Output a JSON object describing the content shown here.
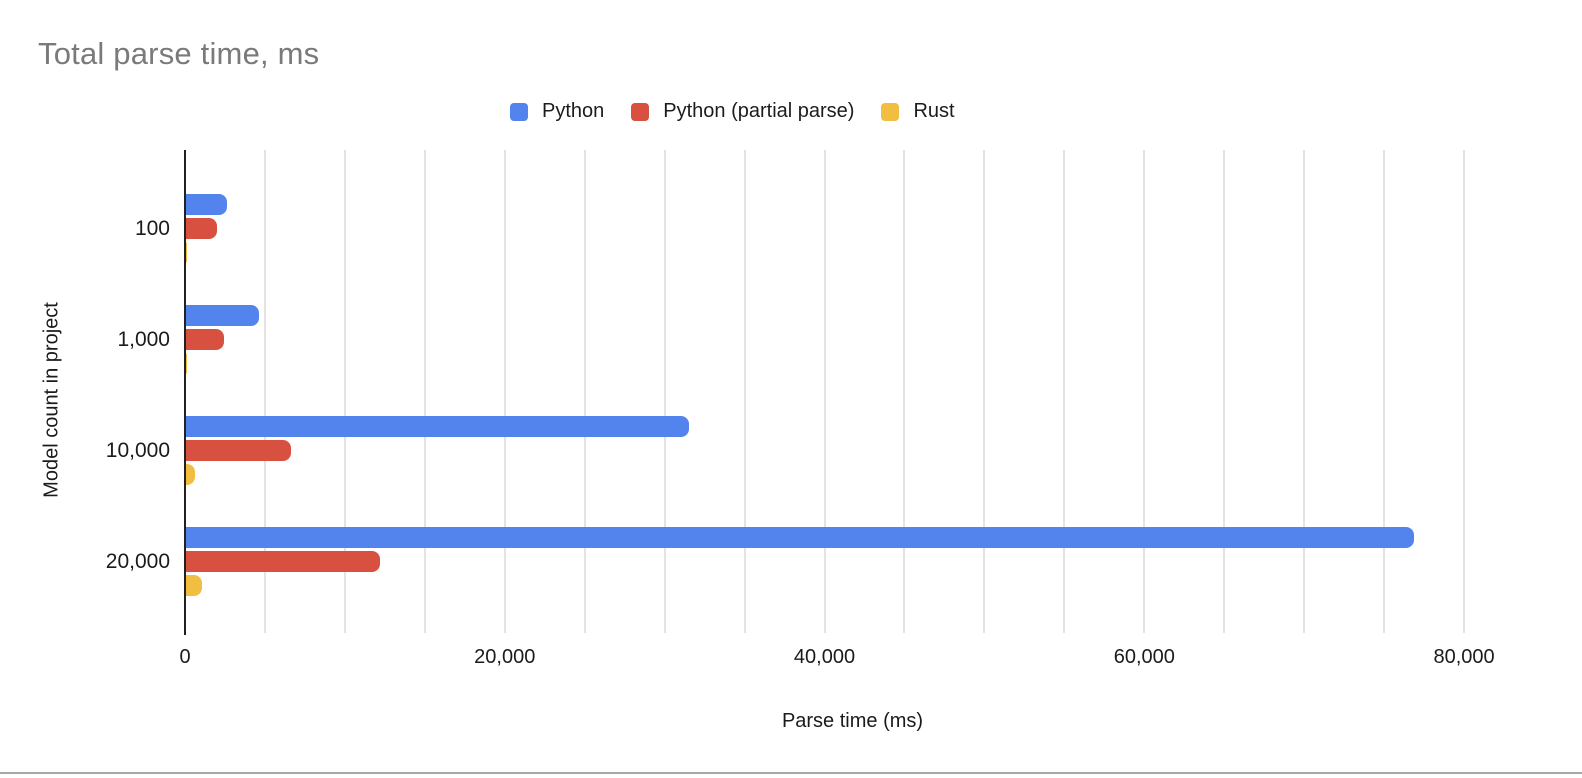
{
  "chart_data": {
    "type": "bar",
    "orientation": "horizontal",
    "title": "Total parse time, ms",
    "xlabel": "Parse time (ms)",
    "ylabel": "Model count in project",
    "categories": [
      "100",
      "1,000",
      "10,000",
      "20,000"
    ],
    "series": [
      {
        "name": "Python",
        "color": "#5383EC",
        "values": [
          2600,
          4600,
          31500,
          76900
        ]
      },
      {
        "name": "Python (partial parse)",
        "color": "#D85140",
        "values": [
          2000,
          2450,
          6600,
          12200
        ]
      },
      {
        "name": "Rust",
        "color": "#F1BE42",
        "values": [
          60,
          70,
          620,
          1050
        ]
      }
    ],
    "xlim": [
      0,
      83500
    ],
    "grid": true,
    "grid_step": 5000,
    "grid_max": 80000,
    "x_ticks": [
      {
        "value": 0,
        "label": "0"
      },
      {
        "value": 20000,
        "label": "20,000"
      },
      {
        "value": 40000,
        "label": "40,000"
      },
      {
        "value": 60000,
        "label": "60,000"
      },
      {
        "value": 80000,
        "label": "80,000"
      }
    ],
    "legend_position": "top"
  },
  "colors": {
    "title_text": "#7A7A7A",
    "axis_line": "#212121",
    "gridline": "#E3E3E3",
    "tick_text": "#1B1B1B",
    "bottom_divider": "#A8A8A8"
  }
}
